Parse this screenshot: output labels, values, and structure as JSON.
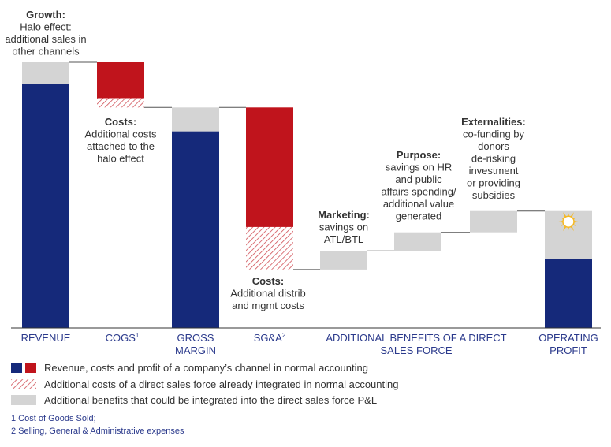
{
  "colors": {
    "navy": "#15297a",
    "red": "#c0141c",
    "gray": "#d4d4d4",
    "hatch": "#c0141c",
    "category_text": "#2b3a8c"
  },
  "chart_data": {
    "type": "bar",
    "subtype": "waterfall",
    "title": "",
    "xlabel": "",
    "ylabel": "",
    "ylim": [
      0,
      100
    ],
    "grid": false,
    "axes_shown": false,
    "categories": [
      "REVENUE",
      "COGS",
      "GROSS MARGIN",
      "SG&A",
      "ADDITIONAL BENEFITS OF A DIRECT SALES FORCE",
      "OPERATING PROFIT"
    ],
    "category_superscripts": [
      "",
      "1",
      "",
      "2",
      "",
      ""
    ],
    "category_lines": [
      [
        "REVENUE"
      ],
      [
        "COGS"
      ],
      [
        "GROSS",
        "MARGIN"
      ],
      [
        "SG&A"
      ],
      [
        "ADDITIONAL BENEFITS OF A DIRECT",
        "SALES FORCE"
      ],
      [
        "OPERATING",
        "PROFIT"
      ]
    ],
    "segments": [
      {
        "slot": 0,
        "type": "normal",
        "bottom": 0,
        "top": 92
      },
      {
        "slot": 0,
        "type": "additional",
        "bottom": 92,
        "top": 100
      },
      {
        "slot": 1,
        "type": "normal",
        "bottom": 86.5,
        "top": 100
      },
      {
        "slot": 1,
        "type": "integrated",
        "bottom": 83,
        "top": 86.5
      },
      {
        "slot": 2,
        "type": "normal",
        "bottom": 0,
        "top": 74
      },
      {
        "slot": 2,
        "type": "additional",
        "bottom": 74,
        "top": 83
      },
      {
        "slot": 3,
        "type": "normal",
        "bottom": 38,
        "top": 83
      },
      {
        "slot": 3,
        "type": "integrated",
        "bottom": 22,
        "top": 38
      },
      {
        "slot": 4,
        "type": "additional",
        "bottom": 22,
        "top": 29
      },
      {
        "slot": 5,
        "type": "additional",
        "bottom": 29,
        "top": 36
      },
      {
        "slot": 6,
        "type": "additional",
        "bottom": 36,
        "top": 44
      },
      {
        "slot": 7,
        "type": "normal",
        "bottom": 0,
        "top": 26
      },
      {
        "slot": 7,
        "type": "additional",
        "bottom": 26,
        "top": 44
      }
    ],
    "connectors": [
      {
        "from_slot": 0,
        "to_slot": 1,
        "value": 100
      },
      {
        "from_slot": 1,
        "to_slot": 2,
        "value": 83
      },
      {
        "from_slot": 2,
        "to_slot": 3,
        "value": 83
      },
      {
        "from_slot": 3,
        "to_slot": 4,
        "value": 22
      },
      {
        "from_slot": 4,
        "to_slot": 5,
        "value": 29
      },
      {
        "from_slot": 5,
        "to_slot": 6,
        "value": 36
      },
      {
        "from_slot": 6,
        "to_slot": 7,
        "value": 44
      }
    ],
    "annotations": [
      {
        "id": "growth",
        "lines": [
          "Growth:",
          "Halo effect:",
          "additional sales in",
          "other channels"
        ]
      },
      {
        "id": "costs-cogs",
        "lines": [
          "Costs:",
          "Additional costs",
          "attached to the",
          "halo effect"
        ]
      },
      {
        "id": "costs-sga",
        "lines": [
          "Costs:",
          "Additional distrib",
          "and mgmt costs"
        ]
      },
      {
        "id": "marketing",
        "lines": [
          "Marketing:",
          "savings on",
          "ATL/BTL"
        ]
      },
      {
        "id": "purpose",
        "lines": [
          "Purpose:",
          "savings on HR",
          "and public",
          "affairs spending/",
          "additional value",
          "generated"
        ]
      },
      {
        "id": "externalities",
        "lines": [
          "Externalities:",
          "co-funding by",
          "donors",
          "de-risking",
          "investment",
          "or providing",
          "subsidies"
        ]
      }
    ],
    "legend": {
      "position": "bottom-left",
      "entries": [
        {
          "type": "normal",
          "label": "Revenue, costs and profit of a company’s channel in normal accounting"
        },
        {
          "type": "integrated",
          "label": "Additional costs of a direct sales force already integrated in normal accounting"
        },
        {
          "type": "additional",
          "label": "Additional benefits that could be integrated into the direct sales force P&L"
        }
      ]
    },
    "footnotes": [
      "1 Cost of Goods Sold;",
      "2 Selling, General & Administrative expenses"
    ],
    "icon": {
      "slot": 7,
      "name": "sun-icon",
      "value": 40
    }
  }
}
